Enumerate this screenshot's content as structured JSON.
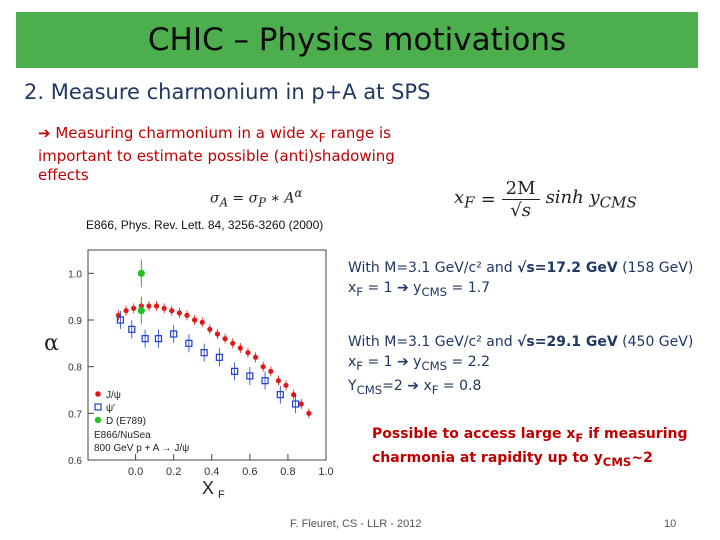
{
  "title": "CHIC – Physics motivations",
  "subtitle": "2.  Measure charmonium in p+A at SPS",
  "bullet": {
    "arrow": "➔",
    "text_a": " Measuring charmonium in a wide x",
    "text_sub": "F",
    "text_b": " range is important to estimate possible (anti)shadowing effects"
  },
  "formula_alpha": {
    "lhs": "σ",
    "lhs_sub": "A",
    "eq": " = σ",
    "rhs_sub": "P",
    "rest": " ∗ A",
    "exp": "α"
  },
  "formula_xf": {
    "lhs": "x",
    "lhs_sub": "F",
    "eq": "=",
    "num": "2M",
    "den": "√s",
    "rhs": "sinh y",
    "rhs_sub": "CMS"
  },
  "reference": "E866, Phys. Rev. Lett. 84, 3256-3260 (2000)",
  "info1": {
    "line1_a": "With M=3.1 GeV/c² and ",
    "line1_b": "√s=17.2 GeV",
    "line1_c": " (158 GeV)",
    "line2_a": "x",
    "line2_sub": "F",
    "line2_b": " = 1 ➔ y",
    "line2_sub2": "CMS",
    "line2_c": " = 1.7"
  },
  "info2": {
    "line1_a": "With M=3.1 GeV/c² and ",
    "line1_b": "√s=29.1 GeV",
    "line1_c": " (450 GeV)",
    "line2_a": "x",
    "line2_sub": "F",
    "line2_b": " = 1 ➔ y",
    "line2_sub2": "CMS",
    "line2_c": " = 2.2",
    "line3_a": "Y",
    "line3_sub": "CMS",
    "line3_b": "=2 ➔ x",
    "line3_sub2": "F",
    "line3_c": " = 0.8"
  },
  "conclusion": {
    "a": "Possible to access large x",
    "sub": "F",
    "b": " if measuring charmonia at rapidity up to y",
    "sub2": "CMS",
    "c": "~2"
  },
  "footer": "F. Fleuret, CS - LLR - 2012",
  "page_number": "10",
  "chart_data": {
    "type": "scatter",
    "ylabel": "α",
    "xlabel": "x_F",
    "xlim": [
      -0.25,
      1.0
    ],
    "ylim": [
      0.6,
      1.05
    ],
    "yticks": [
      "0.6",
      "0.7",
      "0.8",
      "0.9",
      "1.0"
    ],
    "xticks": [
      "0.0",
      "0.2",
      "0.4",
      "0.6",
      "0.8",
      "1.0"
    ],
    "legend": [
      {
        "label": "J/ψ",
        "marker": "filled-square"
      },
      {
        "label": "ψ'",
        "marker": "open-square"
      },
      {
        "label": "D (E789)",
        "marker": "green-circle"
      }
    ],
    "annotation_1": "E866/NuSea",
    "annotation_2": "800 GeV p + A → J/ψ",
    "colors": {
      "jpsi": "#e01818",
      "psiprime": "#1a3ccf",
      "d": "#22c022"
    },
    "series": [
      {
        "name": "J/ψ",
        "x": [
          -0.09,
          -0.05,
          -0.01,
          0.03,
          0.07,
          0.11,
          0.15,
          0.19,
          0.23,
          0.27,
          0.31,
          0.35,
          0.39,
          0.43,
          0.47,
          0.51,
          0.55,
          0.59,
          0.63,
          0.67,
          0.71,
          0.75,
          0.79,
          0.83,
          0.87,
          0.91
        ],
        "y": [
          0.91,
          0.92,
          0.925,
          0.93,
          0.93,
          0.93,
          0.925,
          0.92,
          0.915,
          0.91,
          0.9,
          0.895,
          0.88,
          0.87,
          0.86,
          0.85,
          0.84,
          0.83,
          0.82,
          0.8,
          0.79,
          0.77,
          0.76,
          0.74,
          0.72,
          0.7
        ]
      },
      {
        "name": "ψ'",
        "x": [
          -0.08,
          -0.02,
          0.05,
          0.12,
          0.2,
          0.28,
          0.36,
          0.44,
          0.52,
          0.6,
          0.68,
          0.76,
          0.84
        ],
        "y": [
          0.9,
          0.88,
          0.86,
          0.86,
          0.87,
          0.85,
          0.83,
          0.82,
          0.79,
          0.78,
          0.77,
          0.74,
          0.72
        ]
      },
      {
        "name": "D (E789)",
        "x": [
          0.03,
          0.03
        ],
        "y": [
          1.0,
          0.92
        ]
      }
    ]
  }
}
